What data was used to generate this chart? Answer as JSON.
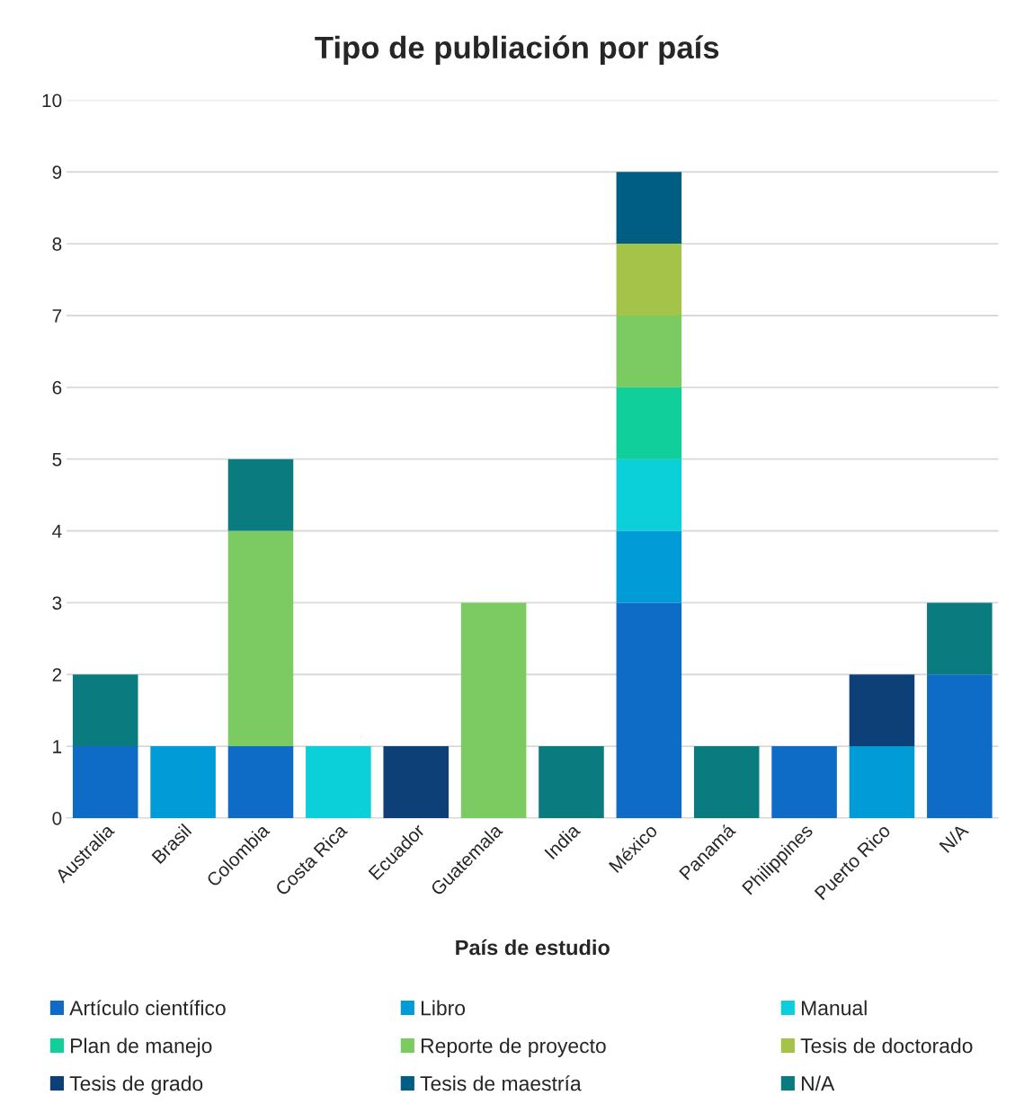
{
  "chart_data": {
    "type": "bar",
    "title": "Tipo de publiación por país",
    "xlabel": "País de estudio",
    "categories": [
      "Australia",
      "Brasil",
      "Colombia",
      "Costa Rica",
      "Ecuador",
      "Guatemala",
      "India",
      "México",
      "Panamá",
      "Philippines",
      "Puerto Rico",
      "N/A"
    ],
    "stacked": true,
    "ylim": [
      0,
      10
    ],
    "yticks": [
      0,
      1,
      2,
      3,
      4,
      5,
      6,
      7,
      8,
      9,
      10
    ],
    "grid": "y",
    "legend": "bottom",
    "series": [
      {
        "name": "Artículo científico",
        "color": "#0f6cc6",
        "values": [
          1,
          null,
          1,
          null,
          null,
          null,
          null,
          3,
          null,
          1,
          null,
          2
        ]
      },
      {
        "name": "Libro",
        "color": "#019cd8",
        "values": [
          null,
          1,
          null,
          null,
          null,
          null,
          null,
          1,
          null,
          null,
          1,
          null
        ]
      },
      {
        "name": "Manual",
        "color": "#0bd0d9",
        "values": [
          null,
          null,
          null,
          1,
          null,
          null,
          null,
          1,
          null,
          null,
          null,
          null
        ]
      },
      {
        "name": "Plan de manejo",
        "color": "#10cf9b",
        "values": [
          null,
          null,
          null,
          null,
          null,
          null,
          null,
          1,
          null,
          null,
          null,
          null
        ]
      },
      {
        "name": "Reporte de proyecto",
        "color": "#7ccb62",
        "values": [
          null,
          null,
          3,
          null,
          null,
          3,
          null,
          1,
          null,
          null,
          null,
          null
        ]
      },
      {
        "name": "Tesis de doctorado",
        "color": "#a5c249",
        "values": [
          null,
          null,
          null,
          null,
          null,
          null,
          null,
          1,
          null,
          null,
          null,
          null
        ]
      },
      {
        "name": "Tesis de grado",
        "color": "#0c4077",
        "values": [
          null,
          null,
          null,
          null,
          1,
          null,
          null,
          null,
          null,
          null,
          1,
          null
        ]
      },
      {
        "name": "Tesis de maestría",
        "color": "#005e85",
        "values": [
          null,
          null,
          null,
          null,
          null,
          null,
          null,
          1,
          null,
          null,
          null,
          null
        ]
      },
      {
        "name": "N/A",
        "color": "#0a7c7f",
        "values": [
          1,
          null,
          1,
          null,
          null,
          null,
          1,
          null,
          1,
          null,
          null,
          1
        ]
      }
    ]
  }
}
